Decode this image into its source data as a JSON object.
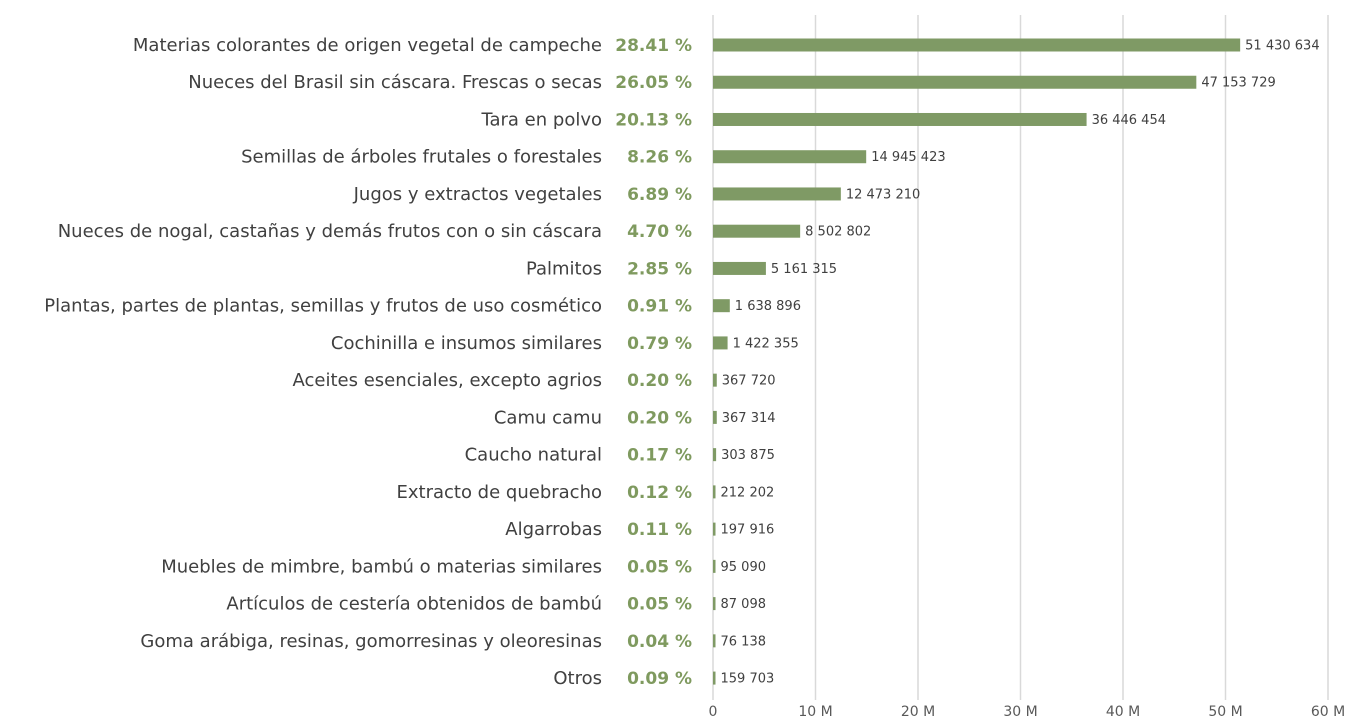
{
  "chart_data": {
    "type": "barh",
    "categories": [
      "Materias colorantes de origen vegetal de campeche",
      "Nueces del Brasil sin cáscara. Frescas o secas",
      "Tara en polvo",
      "Semillas de árboles frutales o forestales",
      "Jugos y extractos vegetales",
      "Nueces de nogal, castañas y demás frutos con o sin cáscara",
      "Palmitos",
      "Plantas, partes de plantas, semillas y frutos de uso cosmético",
      "Cochinilla e insumos similares",
      "Aceites esenciales, excepto agrios",
      "Camu camu",
      "Caucho natural",
      "Extracto de quebracho",
      "Algarrobas",
      "Muebles de mimbre, bambú o materias similares",
      "Artículos de cestería obtenidos de bambú",
      "Goma arábiga, resinas, gomorresinas y oleoresinas",
      "Otros"
    ],
    "values": [
      51430634,
      47153729,
      36446454,
      14945423,
      12473210,
      8502802,
      5161315,
      1638896,
      1422355,
      367720,
      367314,
      303875,
      212202,
      197916,
      95090,
      87098,
      76138,
      159703
    ],
    "value_labels": [
      "51 430 634",
      "47 153 729",
      "36 446 454",
      "14 945 423",
      "12 473 210",
      "8 502 802",
      "5 161 315",
      "1 638 896",
      "1 422 355",
      "367 720",
      "367 314",
      "303 875",
      "212 202",
      "197 916",
      "95 090",
      "87 098",
      "76 138",
      "159 703"
    ],
    "shares": [
      28.41,
      26.05,
      20.13,
      8.26,
      6.89,
      4.7,
      2.85,
      0.91,
      0.79,
      0.2,
      0.2,
      0.17,
      0.12,
      0.11,
      0.05,
      0.05,
      0.04,
      0.09
    ],
    "share_labels": [
      "28.41 %",
      "26.05 %",
      "20.13 %",
      "8.26 %",
      "6.89 %",
      "4.70 %",
      "2.85 %",
      "0.91 %",
      "0.79 %",
      "0.20 %",
      "0.20 %",
      "0.17 %",
      "0.12 %",
      "0.11 %",
      "0.05 %",
      "0.05 %",
      "0.04 %",
      "0.09 %"
    ],
    "color": "#7f9a65",
    "xlim": [
      0,
      60000000
    ],
    "xticks": [
      0,
      {
        "value": 10000000,
        "label": "10 M"
      },
      {
        "value": 20000000,
        "label": "20 M"
      },
      {
        "value": 30000000,
        "label": "30 M"
      },
      {
        "value": 40000000,
        "label": "40 M"
      },
      {
        "value": 50000000,
        "label": "50 M"
      },
      {
        "value": 60000000,
        "label": "60 M"
      }
    ],
    "grid": true
  }
}
